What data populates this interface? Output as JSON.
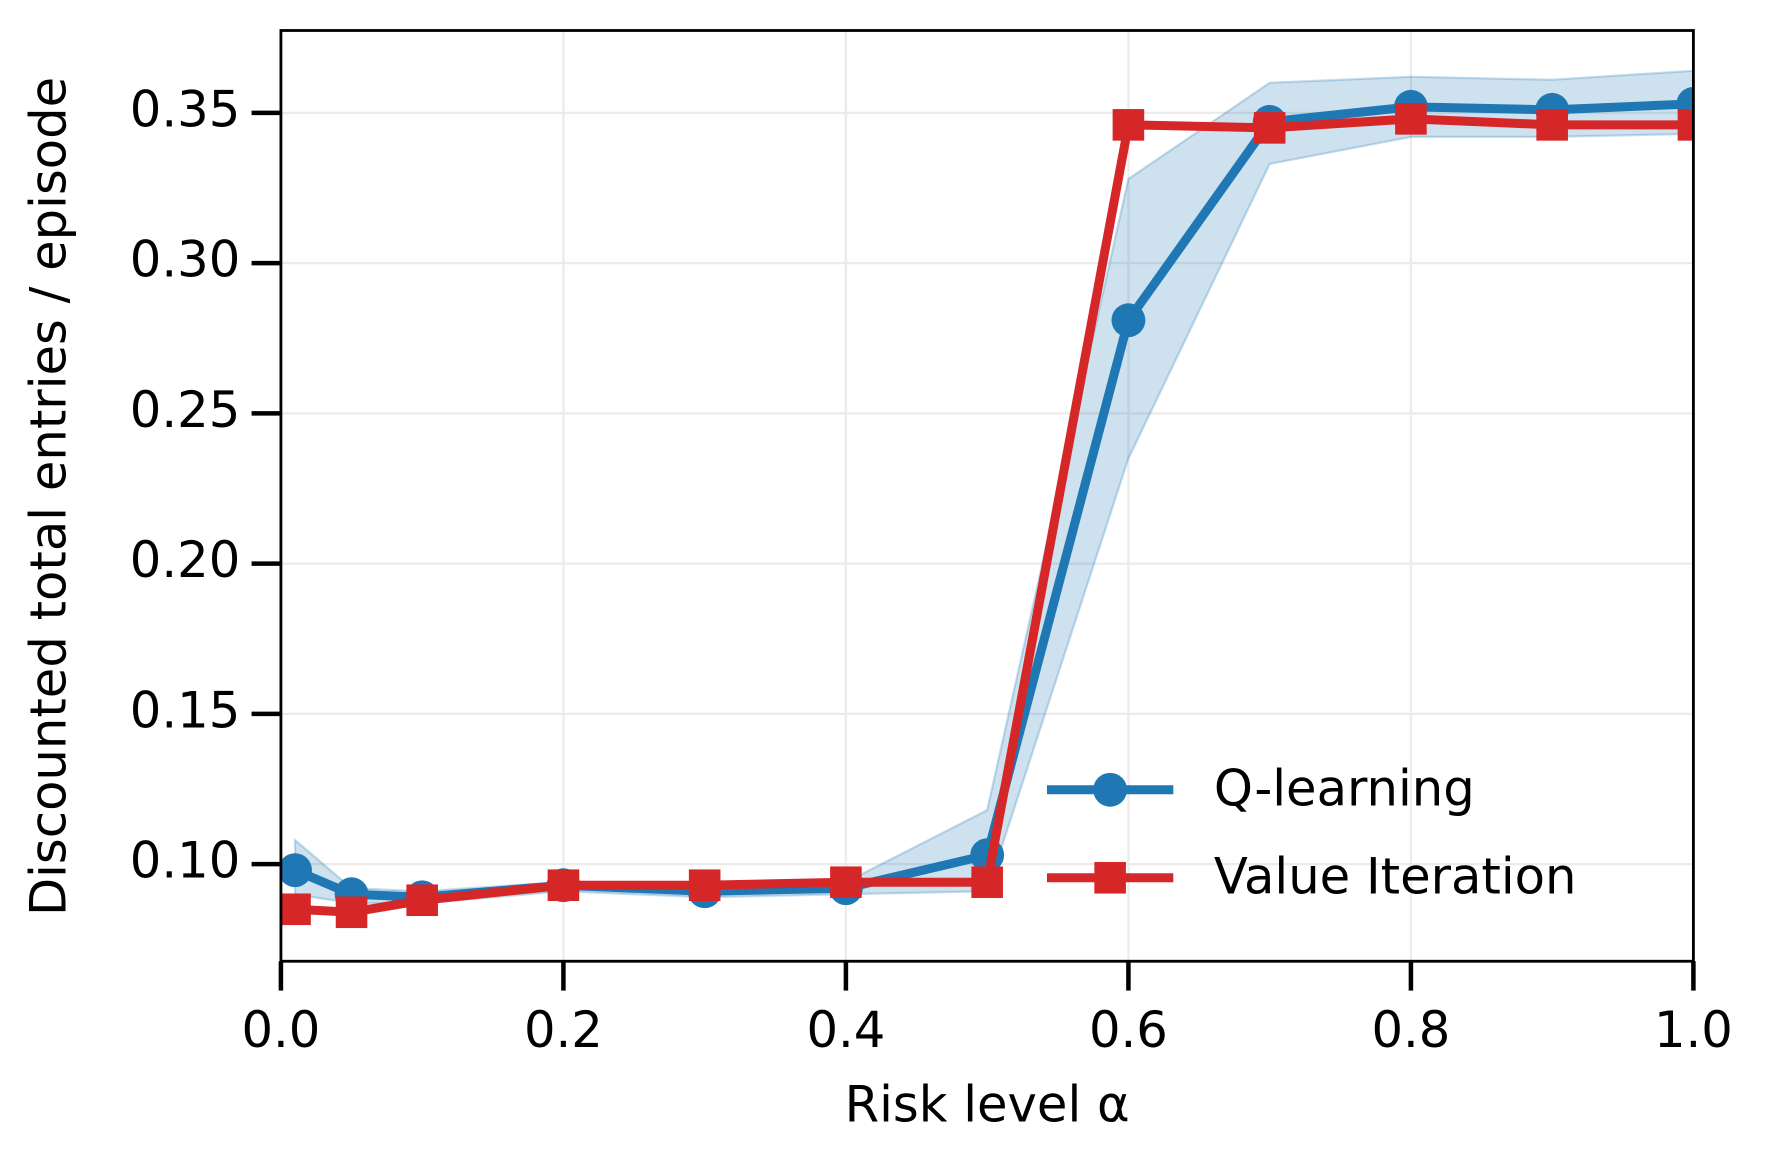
{
  "chart_data": {
    "type": "line",
    "xlabel": "Risk level α",
    "ylabel": "Discounted total entries / episode",
    "x": [
      0.01,
      0.05,
      0.1,
      0.2,
      0.3,
      0.4,
      0.5,
      0.6,
      0.7,
      0.8,
      0.9,
      1.0
    ],
    "series": [
      {
        "name": "Q-learning",
        "color": "#1f77b4",
        "marker": "circle",
        "values": [
          0.098,
          0.09,
          0.089,
          0.093,
          0.091,
          0.092,
          0.103,
          0.281,
          0.347,
          0.352,
          0.351,
          0.353
        ],
        "lower": [
          0.09,
          0.087,
          0.087,
          0.091,
          0.089,
          0.09,
          0.091,
          0.235,
          0.333,
          0.342,
          0.342,
          0.343
        ],
        "upper": [
          0.108,
          0.092,
          0.091,
          0.094,
          0.093,
          0.094,
          0.118,
          0.328,
          0.36,
          0.362,
          0.361,
          0.364
        ]
      },
      {
        "name": "Value Iteration",
        "color": "#d62728",
        "marker": "square",
        "values": [
          0.085,
          0.084,
          0.088,
          0.093,
          0.093,
          0.094,
          0.094,
          0.346,
          0.345,
          0.348,
          0.346,
          0.346
        ]
      }
    ],
    "xlim": [
      0,
      1
    ],
    "xticks": [
      {
        "value": 0,
        "label": "0.0"
      },
      0.2,
      0.4,
      0.6,
      0.8,
      {
        "value": 1,
        "label": "1.0"
      }
    ],
    "ylim": [
      0.0677,
      0.3774
    ],
    "yticks": [
      {
        "value": 0.1,
        "label": "0.10"
      },
      0.15,
      {
        "value": 0.2,
        "label": "0.20"
      },
      0.25,
      {
        "value": 0.3,
        "label": "0.30"
      },
      0.35
    ],
    "grid": true,
    "legend": "lower right"
  }
}
